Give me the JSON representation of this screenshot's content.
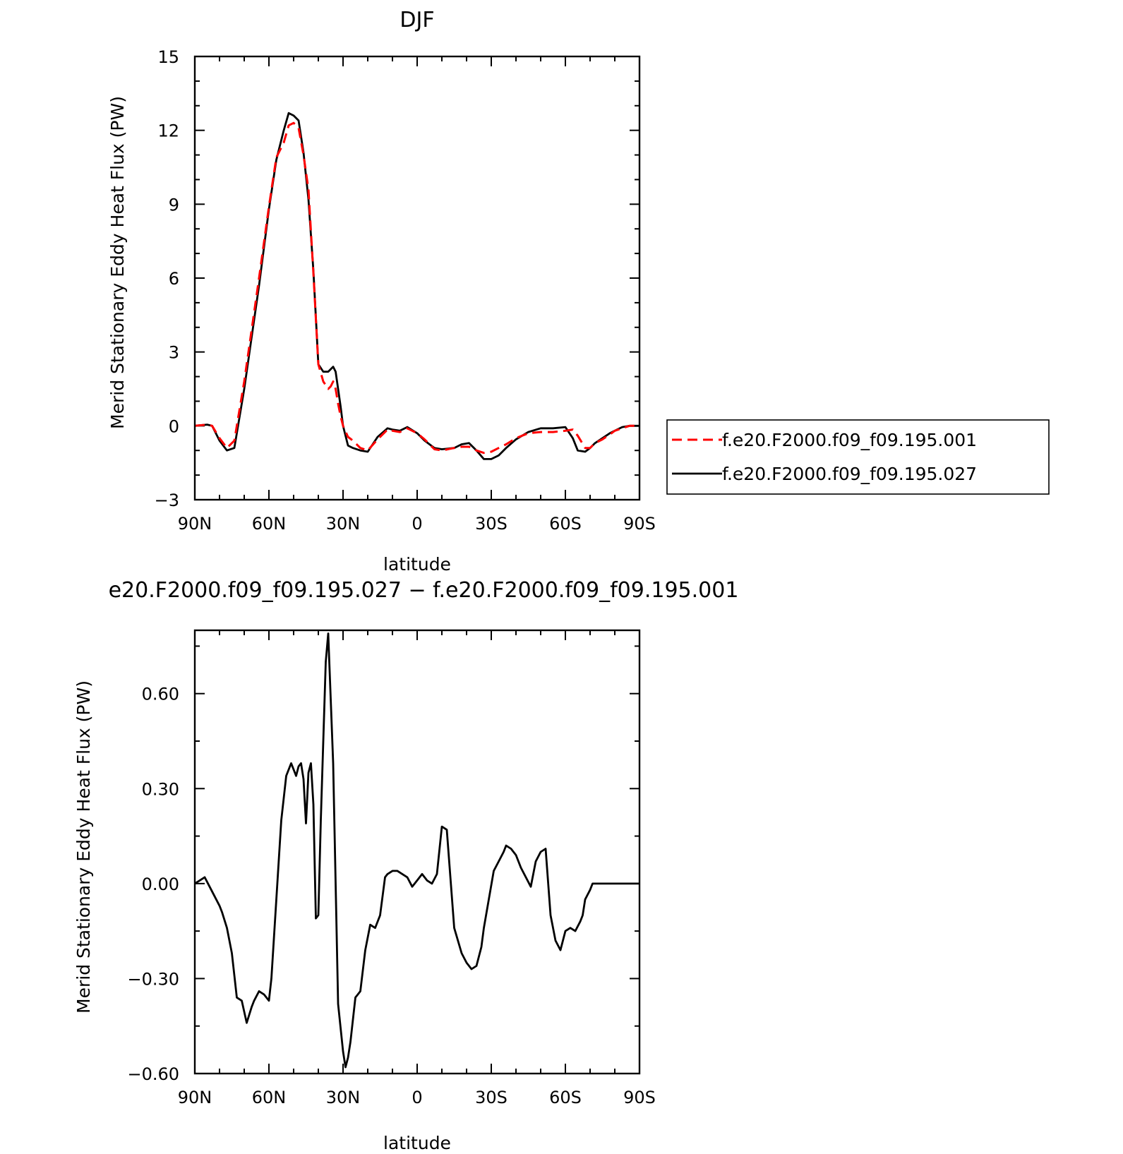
{
  "chart_data": [
    {
      "type": "line",
      "title": "DJF",
      "xlabel": "latitude",
      "ylabel": "Merid Stationary Eddy Heat Flux (PW)",
      "xlim": [
        90,
        -90
      ],
      "ylim": [
        -3,
        15
      ],
      "x_ticks": [
        90,
        60,
        30,
        0,
        -30,
        -60,
        -90
      ],
      "x_tick_labels": [
        "90N",
        "60N",
        "30N",
        "0",
        "30S",
        "60S",
        "90S"
      ],
      "y_ticks": [
        -3,
        0,
        3,
        6,
        9,
        12,
        15
      ],
      "y_tick_labels": [
        "−3",
        "0",
        "3",
        "6",
        "9",
        "12",
        "15"
      ],
      "legend_position": "right",
      "series": [
        {
          "name": "f.e20.F2000.f09_f09.195.001",
          "color": "#ff0000",
          "style": "dashed",
          "x": [
            90,
            85,
            83,
            80,
            77,
            74,
            72,
            70,
            67,
            64,
            60,
            57,
            54,
            52,
            50,
            48,
            46,
            44,
            42,
            40,
            38,
            36,
            35,
            34,
            33,
            32,
            31,
            30,
            28,
            26,
            23,
            20,
            16,
            12,
            10,
            7,
            4,
            0,
            -3,
            -7,
            -10,
            -15,
            -18,
            -21,
            -24,
            -27,
            -30,
            -33,
            -36,
            -40,
            -45,
            -50,
            -55,
            -60,
            -63,
            -65,
            -68,
            -70,
            -72,
            -75,
            -78,
            -80,
            -83,
            -86,
            -88,
            -90
          ],
          "y": [
            0,
            0.05,
            0,
            -0.5,
            -0.9,
            -0.6,
            0.6,
            1.8,
            3.9,
            6.0,
            8.9,
            10.9,
            11.5,
            12.2,
            12.3,
            12.1,
            11.0,
            9.6,
            6.2,
            2.5,
            1.8,
            1.5,
            1.6,
            1.8,
            1.5,
            0.9,
            0.4,
            0,
            -0.45,
            -0.6,
            -0.9,
            -1.0,
            -0.55,
            -0.15,
            -0.2,
            -0.25,
            -0.1,
            -0.3,
            -0.55,
            -0.95,
            -1.0,
            -0.9,
            -0.85,
            -0.85,
            -1.0,
            -1.1,
            -1.05,
            -0.9,
            -0.75,
            -0.5,
            -0.3,
            -0.25,
            -0.25,
            -0.2,
            -0.15,
            -0.4,
            -0.9,
            -0.9,
            -0.7,
            -0.55,
            -0.35,
            -0.2,
            -0.1,
            0,
            0,
            0
          ]
        },
        {
          "name": "f.e20.F2000.f09_f09.195.027",
          "color": "#000000",
          "style": "solid",
          "x": [
            90,
            85,
            83,
            80,
            77,
            74,
            72,
            70,
            67,
            64,
            60,
            57,
            54,
            52,
            50,
            48,
            46,
            44,
            42,
            40,
            38,
            36,
            35,
            34,
            33,
            32,
            31,
            30,
            28,
            26,
            23,
            20,
            16,
            12,
            10,
            7,
            4,
            0,
            -3,
            -7,
            -10,
            -15,
            -18,
            -21,
            -24,
            -27,
            -30,
            -33,
            -36,
            -40,
            -45,
            -50,
            -55,
            -60,
            -63,
            -65,
            -68,
            -70,
            -72,
            -75,
            -78,
            -80,
            -83,
            -86,
            -88,
            -90
          ],
          "y": [
            0,
            0.05,
            0,
            -0.6,
            -1.0,
            -0.9,
            0.3,
            1.5,
            3.6,
            5.7,
            8.8,
            10.8,
            12.0,
            12.7,
            12.6,
            12.4,
            11.1,
            9.2,
            6.3,
            2.5,
            2.2,
            2.2,
            2.3,
            2.4,
            2.2,
            1.5,
            0.8,
            0,
            -0.8,
            -0.9,
            -1.0,
            -1.05,
            -0.45,
            -0.1,
            -0.15,
            -0.2,
            -0.05,
            -0.3,
            -0.6,
            -0.9,
            -0.95,
            -0.9,
            -0.75,
            -0.7,
            -1.0,
            -1.35,
            -1.35,
            -1.2,
            -0.9,
            -0.55,
            -0.25,
            -0.1,
            -0.1,
            -0.05,
            -0.5,
            -1.0,
            -1.05,
            -0.9,
            -0.7,
            -0.5,
            -0.3,
            -0.2,
            -0.05,
            0,
            0,
            0
          ]
        }
      ]
    },
    {
      "type": "line",
      "title": "e20.F2000.f09_f09.195.027 − f.e20.F2000.f09_f09.195.001",
      "xlabel": "latitude",
      "ylabel": "Merid Stationary Eddy Heat Flux (PW)",
      "xlim": [
        90,
        -90
      ],
      "ylim": [
        -0.6,
        0.8
      ],
      "x_ticks": [
        90,
        60,
        30,
        0,
        -30,
        -60,
        -90
      ],
      "x_tick_labels": [
        "90N",
        "60N",
        "30N",
        "0",
        "30S",
        "60S",
        "90S"
      ],
      "y_ticks": [
        -0.6,
        -0.3,
        0,
        0.3,
        0.6
      ],
      "y_tick_labels": [
        "−0.60",
        "−0.30",
        "0.00",
        "0.30",
        "0.60"
      ],
      "series": [
        {
          "color": "#000000",
          "style": "solid",
          "x": [
            90,
            88,
            86,
            84,
            82,
            80,
            79,
            77,
            75,
            73,
            71,
            69,
            67,
            66,
            64,
            62,
            60,
            59,
            57,
            55,
            53,
            51,
            49,
            48,
            47,
            46,
            45,
            44,
            43,
            42,
            41,
            40,
            39,
            37,
            36,
            34,
            32,
            30,
            29,
            28,
            27,
            26,
            25,
            24,
            23,
            21,
            19,
            17,
            15,
            13,
            12,
            10,
            8,
            6,
            4,
            2,
            0,
            -2,
            -4,
            -6,
            -8,
            -10,
            -12,
            -15,
            -18,
            -20,
            -22,
            -24,
            -26,
            -27,
            -29,
            -31,
            -33,
            -35,
            -36,
            -38,
            -40,
            -42,
            -44,
            -46,
            -48,
            -50,
            -52,
            -54,
            -56,
            -58,
            -60,
            -62,
            -64,
            -66,
            -67,
            -68,
            -70,
            -71,
            -72,
            -73,
            -74,
            -76,
            -77,
            -78,
            -80,
            -82,
            -84,
            -86,
            -88,
            -90
          ],
          "y": [
            0,
            0.01,
            0.02,
            -0.01,
            -0.04,
            -0.07,
            -0.09,
            -0.14,
            -0.22,
            -0.36,
            -0.37,
            -0.44,
            -0.39,
            -0.37,
            -0.34,
            -0.35,
            -0.37,
            -0.3,
            -0.05,
            0.2,
            0.34,
            0.38,
            0.34,
            0.37,
            0.38,
            0.33,
            0.19,
            0.35,
            0.38,
            0.25,
            -0.11,
            -0.1,
            0.2,
            0.7,
            0.79,
            0.38,
            -0.38,
            -0.53,
            -0.58,
            -0.55,
            -0.5,
            -0.43,
            -0.36,
            -0.35,
            -0.34,
            -0.21,
            -0.13,
            -0.14,
            -0.1,
            0.02,
            0.03,
            0.04,
            0.04,
            0.03,
            0.02,
            -0.01,
            0.01,
            0.03,
            0.01,
            0.0,
            0.03,
            0.18,
            0.17,
            -0.14,
            -0.22,
            -0.25,
            -0.27,
            -0.26,
            -0.2,
            -0.14,
            -0.05,
            0.04,
            0.07,
            0.1,
            0.12,
            0.11,
            0.09,
            0.05,
            0.02,
            -0.01,
            0.07,
            0.1,
            0.11,
            -0.1,
            -0.18,
            -0.21,
            -0.15,
            -0.14,
            -0.15,
            -0.12,
            -0.1,
            -0.05,
            -0.02,
            0,
            0,
            0,
            0,
            0,
            0,
            0,
            0,
            0,
            0,
            0,
            0,
            0
          ]
        }
      ]
    }
  ]
}
